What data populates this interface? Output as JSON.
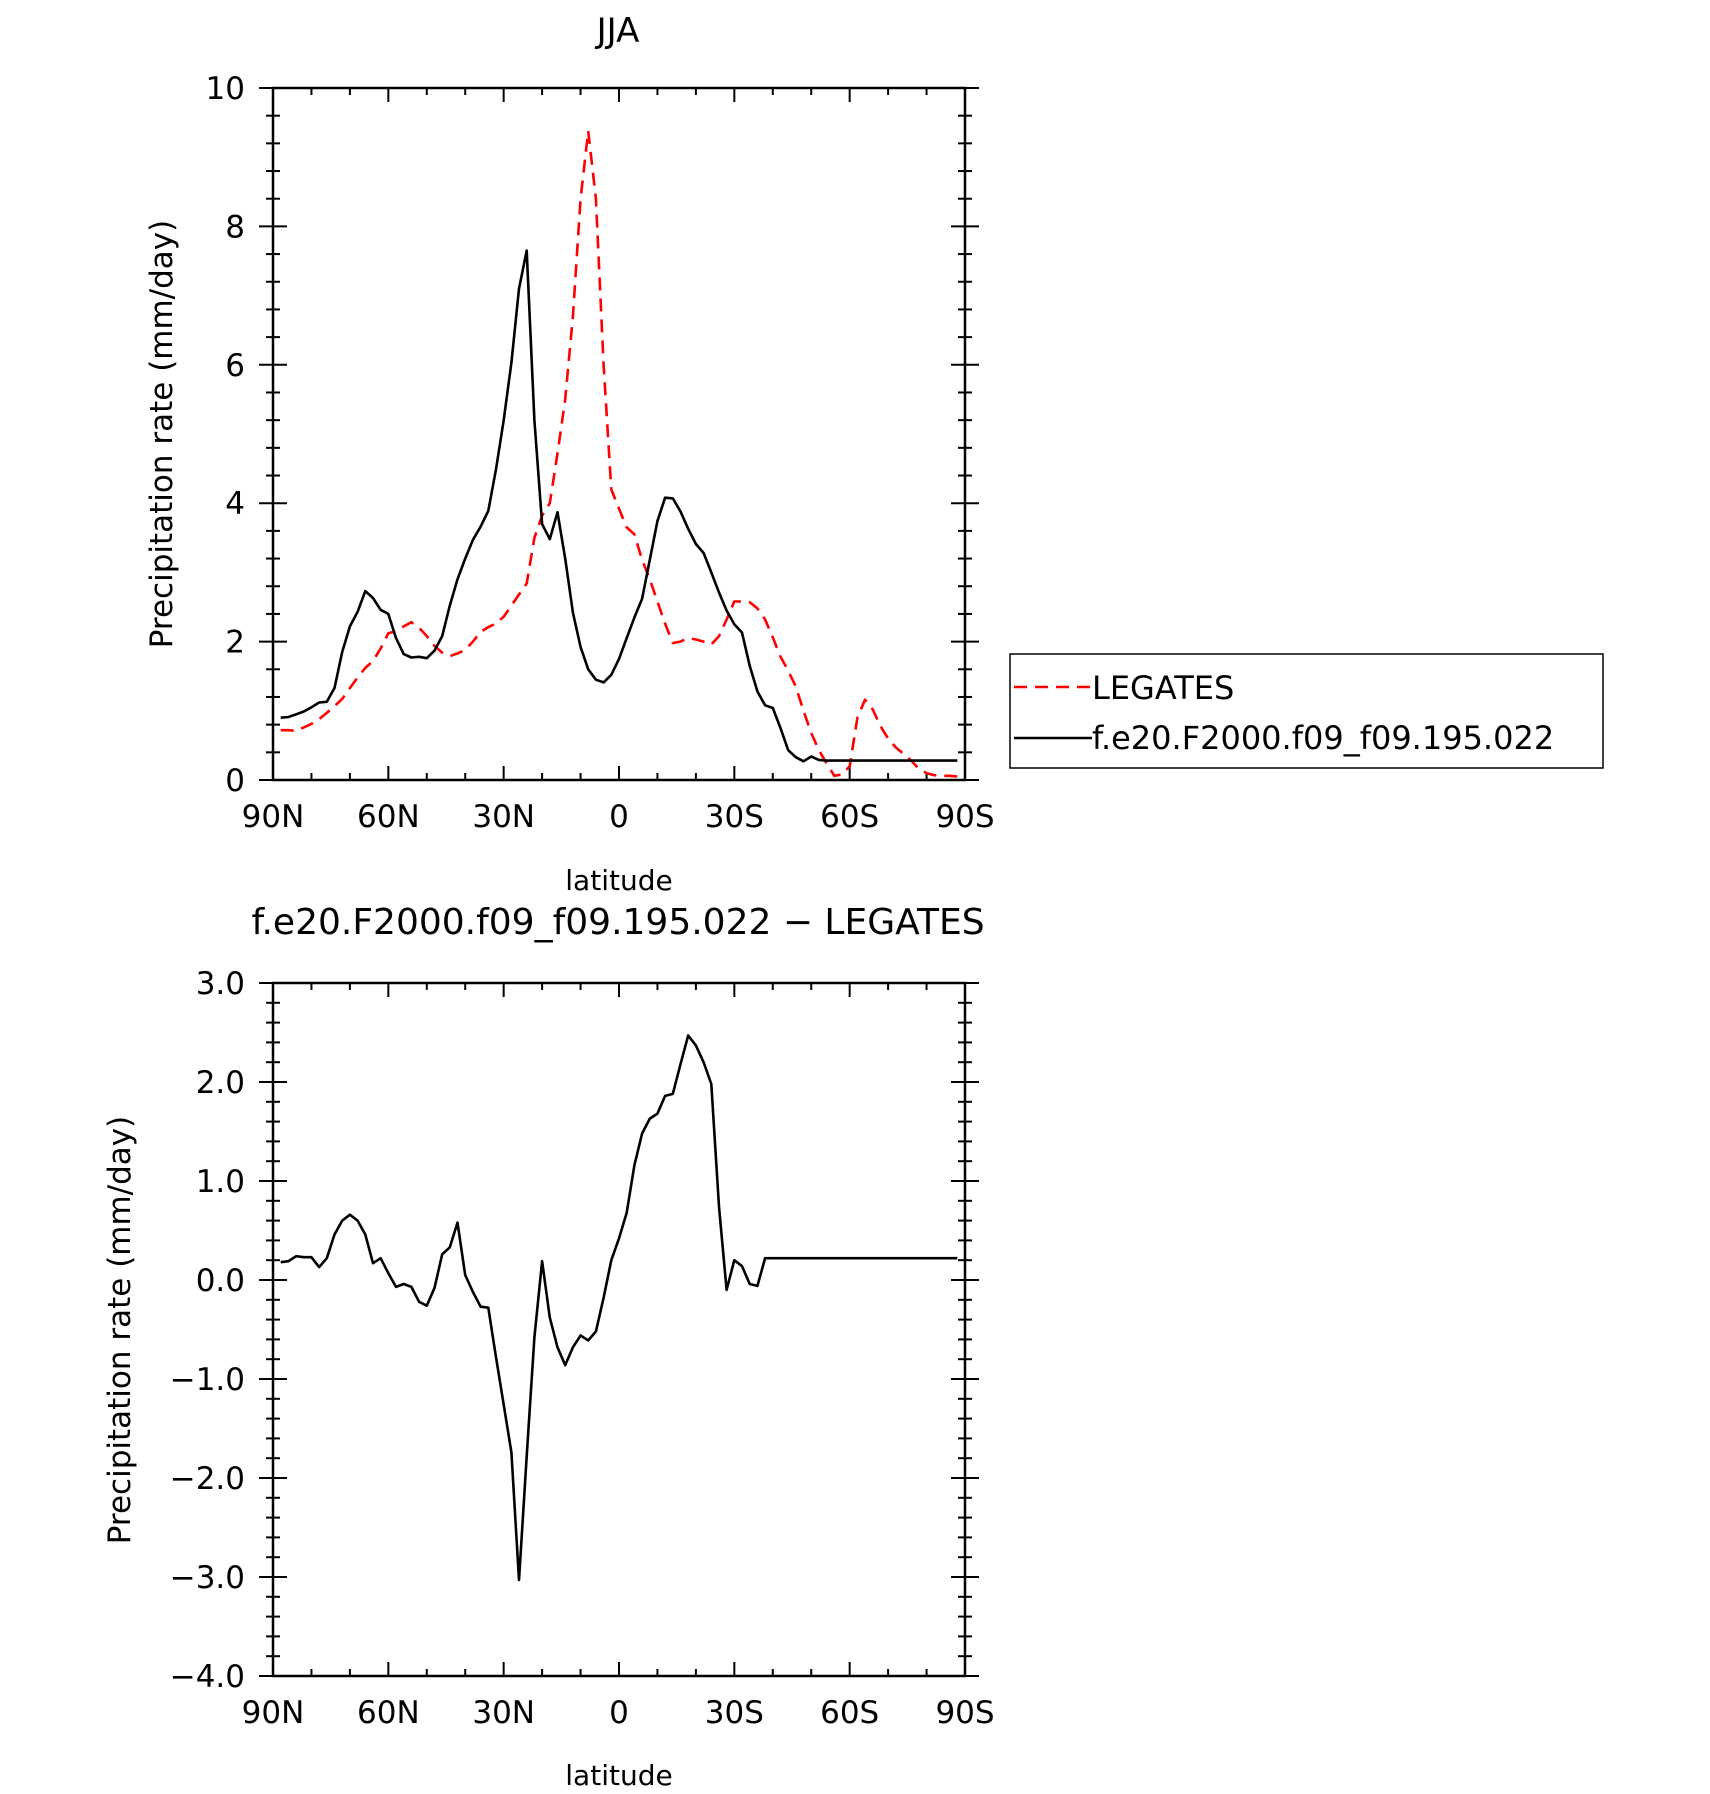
{
  "chart_data": [
    {
      "type": "line",
      "title": "JJA",
      "xlabel": "latitude",
      "ylabel": "Precipitation rate (mm/day)",
      "xlim": [
        90,
        -90
      ],
      "ylim": [
        0,
        10
      ],
      "x_ticks": [
        {
          "value": 90,
          "label": "90N"
        },
        {
          "value": 60,
          "label": "60N"
        },
        {
          "value": 30,
          "label": "30N"
        },
        {
          "value": 0,
          "label": "0"
        },
        {
          "value": -30,
          "label": "30S"
        },
        {
          "value": -60,
          "label": "60S"
        },
        {
          "value": -90,
          "label": "90S"
        }
      ],
      "y_ticks": [
        {
          "value": 0,
          "label": "0"
        },
        {
          "value": 2,
          "label": "2"
        },
        {
          "value": 4,
          "label": "4"
        },
        {
          "value": 6,
          "label": "6"
        },
        {
          "value": 8,
          "label": "8"
        },
        {
          "value": 10,
          "label": "10"
        }
      ],
      "legend": "right",
      "series": [
        {
          "name": "LEGATES",
          "color": "#ff0000",
          "dash": "dashed",
          "x": [
            88,
            86,
            84,
            82,
            80,
            78,
            76,
            74,
            72,
            70,
            68,
            66,
            64,
            62,
            60,
            58,
            56,
            54,
            52,
            50,
            48,
            46,
            44,
            42,
            40,
            38,
            36,
            34,
            32,
            30,
            28,
            26,
            24,
            22,
            20,
            18,
            16,
            14,
            12,
            10,
            8,
            6,
            4,
            2,
            0,
            -2,
            -4,
            -6,
            -8,
            -10,
            -12,
            -14,
            -16,
            -18,
            -20,
            -22,
            -24,
            -26,
            -28,
            -30,
            -32,
            -34,
            -36,
            -38,
            -40,
            -42,
            -44,
            -46,
            -48,
            -50,
            -52,
            -54,
            -56,
            -58,
            -60,
            -62,
            -64,
            -66,
            -68,
            -70,
            -72,
            -74,
            -76,
            -78,
            -80,
            -82,
            -84,
            -86,
            -88
          ],
          "values": [
            0.72,
            0.72,
            0.71,
            0.76,
            0.81,
            0.88,
            0.97,
            1.07,
            1.17,
            1.33,
            1.48,
            1.62,
            1.72,
            1.9,
            2.12,
            2.15,
            2.22,
            2.28,
            2.2,
            2.08,
            1.94,
            1.84,
            1.79,
            1.83,
            1.88,
            2.0,
            2.14,
            2.21,
            2.26,
            2.36,
            2.52,
            2.68,
            2.84,
            3.5,
            3.82,
            4.0,
            4.72,
            5.5,
            6.7,
            8.4,
            9.38,
            8.4,
            6.0,
            4.2,
            3.92,
            3.65,
            3.55,
            3.18,
            2.9,
            2.58,
            2.26,
            1.98,
            2.0,
            2.05,
            2.03,
            2.0,
            1.96,
            2.08,
            2.32,
            2.58,
            2.58,
            2.57,
            2.48,
            2.32,
            2.06,
            1.78,
            1.58,
            1.35,
            1.0,
            0.68,
            0.43,
            0.24,
            0.06,
            0.08,
            0.2,
            0.9,
            1.16,
            1.02,
            0.78,
            0.6,
            0.47,
            0.38,
            0.28,
            0.16,
            0.1,
            0.07,
            0.06,
            0.06,
            0.05
          ]
        },
        {
          "name": "f.e20.F2000.f09_f09.195.022",
          "color": "#000000",
          "dash": "solid",
          "x": [
            88,
            86,
            84,
            82,
            80,
            78,
            76,
            74,
            72,
            70,
            68,
            66,
            64,
            62,
            60,
            58,
            56,
            54,
            52,
            50,
            48,
            46,
            44,
            42,
            40,
            38,
            36,
            34,
            32,
            30,
            28,
            26,
            24,
            22,
            20,
            18,
            16,
            14,
            12,
            10,
            8,
            6,
            4,
            2,
            0,
            -2,
            -4,
            -6,
            -8,
            -10,
            -12,
            -14,
            -16,
            -18,
            -20,
            -22,
            -24,
            -26,
            -28,
            -30,
            -32,
            -34,
            -36,
            -38,
            -40,
            -42,
            -44,
            -46,
            -48,
            -50,
            -52,
            -54,
            -56,
            -58,
            -60,
            -62,
            -64,
            -66,
            -68,
            -70,
            -72,
            -74,
            -76,
            -78,
            -80,
            -82,
            -84,
            -86,
            -88
          ],
          "values": [
            0.9,
            0.91,
            0.95,
            0.99,
            1.05,
            1.12,
            1.13,
            1.33,
            1.85,
            2.22,
            2.43,
            2.73,
            2.63,
            2.46,
            2.4,
            2.05,
            1.82,
            1.77,
            1.78,
            1.76,
            1.87,
            2.08,
            2.52,
            2.9,
            3.2,
            3.47,
            3.66,
            3.89,
            4.49,
            5.2,
            6.03,
            7.1,
            7.65,
            5.2,
            3.7,
            3.48,
            3.87,
            3.2,
            2.42,
            1.92,
            1.6,
            1.45,
            1.41,
            1.52,
            1.75,
            2.05,
            2.35,
            2.62,
            3.18,
            3.74,
            4.08,
            4.07,
            3.88,
            3.63,
            3.41,
            3.28,
            3.0,
            2.71,
            2.45,
            2.25,
            2.13,
            1.65,
            1.28,
            1.08,
            1.04,
            0.75,
            0.43,
            0.33,
            0.27,
            0.34,
            0.29,
            0.28,
            0.28,
            0.28,
            0.28,
            0.28,
            0.28,
            0.28,
            0.28,
            0.28,
            0.28,
            0.28,
            0.28,
            0.28,
            0.28,
            0.28,
            0.28,
            0.28,
            0.28
          ]
        }
      ]
    },
    {
      "type": "line",
      "title": "f.e20.F2000.f09_f09.195.022 − LEGATES",
      "xlabel": "latitude",
      "ylabel": "Precipitation rate (mm/day)",
      "xlim": [
        90,
        -90
      ],
      "ylim": [
        -4.0,
        3.0
      ],
      "x_ticks": [
        {
          "value": 90,
          "label": "90N"
        },
        {
          "value": 60,
          "label": "60N"
        },
        {
          "value": 30,
          "label": "30N"
        },
        {
          "value": 0,
          "label": "0"
        },
        {
          "value": -30,
          "label": "30S"
        },
        {
          "value": -60,
          "label": "60S"
        },
        {
          "value": -90,
          "label": "90S"
        }
      ],
      "y_ticks": [
        {
          "value": -4.0,
          "label": "−4.0"
        },
        {
          "value": -3.0,
          "label": "−3.0"
        },
        {
          "value": -2.0,
          "label": "−2.0"
        },
        {
          "value": -1.0,
          "label": "−1.0"
        },
        {
          "value": 0.0,
          "label": "0.0"
        },
        {
          "value": 1.0,
          "label": "1.0"
        },
        {
          "value": 2.0,
          "label": "2.0"
        },
        {
          "value": 3.0,
          "label": "3.0"
        }
      ],
      "series": [
        {
          "color": "#000000",
          "dash": "solid",
          "x": [
            88,
            86,
            84,
            82,
            80,
            78,
            76,
            74,
            72,
            70,
            68,
            66,
            64,
            62,
            60,
            58,
            56,
            54,
            52,
            50,
            48,
            46,
            44,
            42,
            40,
            38,
            36,
            34,
            32,
            30,
            28,
            26,
            24,
            22,
            20,
            18,
            16,
            14,
            12,
            10,
            8,
            6,
            4,
            2,
            0,
            -2,
            -4,
            -6,
            -8,
            -10,
            -12,
            -14,
            -16,
            -18,
            -20,
            -22,
            -24,
            -26,
            -28,
            -30,
            -32,
            -34,
            -36,
            -38,
            -40,
            -42,
            -44,
            -46,
            -48,
            -50,
            -52,
            -54,
            -56,
            -58,
            -60,
            -62,
            -64,
            -66,
            -68,
            -70,
            -72,
            -74,
            -76,
            -78,
            -80,
            -82,
            -84,
            -86,
            -88
          ],
          "values": [
            0.18,
            0.19,
            0.24,
            0.23,
            0.23,
            0.13,
            0.22,
            0.46,
            0.6,
            0.66,
            0.6,
            0.46,
            0.17,
            0.22,
            0.07,
            -0.07,
            -0.04,
            -0.07,
            -0.22,
            -0.26,
            -0.08,
            0.26,
            0.33,
            0.58,
            0.05,
            -0.12,
            -0.27,
            -0.28,
            -0.78,
            -1.26,
            -1.74,
            -3.03,
            -1.78,
            -0.58,
            0.19,
            -0.38,
            -0.68,
            -0.86,
            -0.68,
            -0.56,
            -0.61,
            -0.52,
            -0.18,
            0.2,
            0.42,
            0.68,
            1.16,
            1.48,
            1.63,
            1.68,
            1.86,
            1.88,
            2.18,
            2.47,
            2.37,
            2.2,
            1.98,
            0.74,
            -0.1,
            0.2,
            0.14,
            -0.04,
            -0.06,
            0.22,
            0.22,
            0.22,
            0.22,
            0.22,
            0.22,
            0.22,
            0.22,
            0.22,
            0.22,
            0.22,
            0.22,
            0.22,
            0.22,
            0.22,
            0.22,
            0.22,
            0.22,
            0.22,
            0.22,
            0.22,
            0.22,
            0.22,
            0.22,
            0.22,
            0.22
          ]
        }
      ]
    }
  ]
}
